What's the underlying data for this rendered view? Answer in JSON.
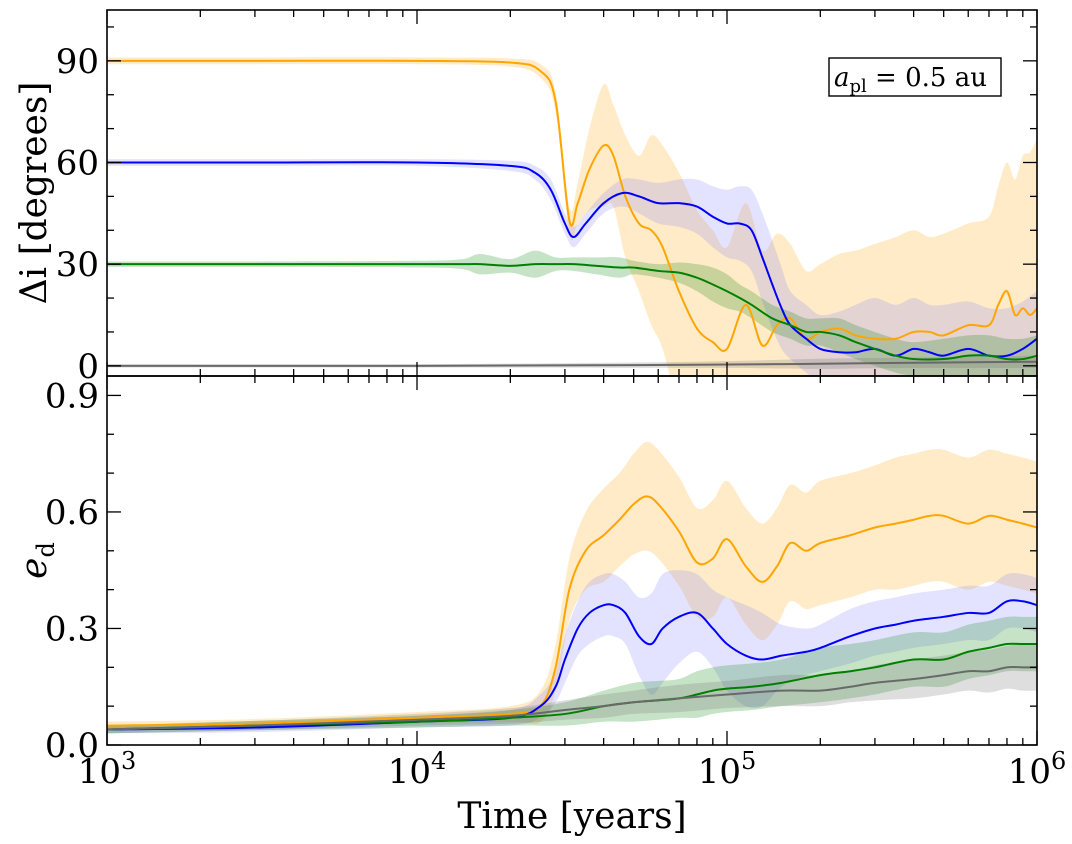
{
  "chart_data": [
    {
      "type": "line",
      "panel": "top",
      "ylabel": "Δi [degrees]",
      "xlabel": "",
      "x_scale": "log",
      "xlim": [
        1000,
        1000000
      ],
      "ylim": [
        -3,
        105
      ],
      "yticks": [
        0,
        30,
        60,
        90
      ],
      "ytick_labels": [
        "0",
        "30",
        "60",
        "90"
      ],
      "annotation": {
        "text": "a_pl = 0.5 au",
        "text_pl": "pl",
        "text_value": " = 0.5 au",
        "text_a": "a",
        "placement": "top-right"
      },
      "series": [
        {
          "color": "#ffa500",
          "x": [
            1000,
            3000,
            10000,
            20000,
            25000,
            28000,
            31000,
            33000,
            36000,
            40000,
            43000,
            47000,
            52000,
            57000,
            62000,
            70000,
            80000,
            90000,
            100000,
            115000,
            130000,
            145000,
            160000,
            180000,
            200000,
            230000,
            260000,
            300000,
            350000,
            400000,
            450000,
            500000,
            600000,
            700000,
            750000,
            800000,
            850000,
            900000,
            950000,
            1000000
          ],
          "y": [
            90,
            90,
            90,
            89.5,
            87,
            78,
            43,
            48,
            58,
            65,
            62,
            50,
            42,
            40,
            35,
            22,
            11,
            7,
            5,
            18,
            6,
            12,
            14,
            8,
            10,
            11,
            9,
            8,
            8,
            10,
            10,
            9,
            12,
            12,
            18,
            22,
            15,
            17,
            15,
            17
          ],
          "band": [
            1,
            1,
            1,
            1.2,
            2,
            3,
            4,
            6,
            12,
            18,
            15,
            18,
            20,
            28,
            30,
            35,
            35,
            33,
            30,
            30,
            28,
            27,
            22,
            20,
            20,
            22,
            25,
            28,
            30,
            30,
            28,
            30,
            30,
            32,
            35,
            38,
            40,
            45,
            48,
            50
          ]
        },
        {
          "color": "#0000ff",
          "x": [
            1000,
            3000,
            10000,
            20000,
            24000,
            27000,
            30000,
            32000,
            35000,
            40000,
            46000,
            52000,
            60000,
            70000,
            80000,
            90000,
            100000,
            110000,
            120000,
            130000,
            140000,
            150000,
            160000,
            180000,
            200000,
            230000,
            260000,
            300000,
            350000,
            400000,
            450000,
            500000,
            600000,
            700000,
            800000,
            900000,
            1000000
          ],
          "y": [
            60,
            60,
            60,
            59,
            57,
            52,
            42,
            38,
            42,
            48,
            51,
            50,
            48,
            48,
            47,
            44,
            42,
            42,
            40,
            32,
            24,
            17,
            12,
            8,
            5,
            4,
            4,
            5,
            3,
            5,
            4,
            3,
            5,
            3,
            3,
            5,
            8
          ],
          "band": [
            1,
            1,
            1,
            1.5,
            2,
            3,
            3,
            3,
            3,
            3,
            4,
            5,
            6,
            7,
            8,
            9,
            10,
            11,
            12,
            13,
            13,
            12,
            10,
            10,
            10,
            12,
            14,
            15,
            15,
            15,
            14,
            15,
            14,
            14,
            14,
            14,
            14
          ],
          "band_color": "#8080ff"
        },
        {
          "color": "#008000",
          "x": [
            1000,
            3000,
            10000,
            14000,
            16000,
            20000,
            24000,
            28000,
            32000,
            38000,
            45000,
            50000,
            60000,
            70000,
            80000,
            90000,
            100000,
            110000,
            120000,
            140000,
            160000,
            180000,
            200000,
            230000,
            260000,
            300000,
            350000,
            400000,
            500000,
            600000,
            700000,
            800000,
            900000,
            1000000
          ],
          "y": [
            30,
            30,
            30,
            30,
            30,
            29.5,
            30,
            30,
            30,
            29.5,
            29,
            29,
            28,
            27.5,
            26,
            24,
            22,
            20,
            18,
            14,
            12,
            10,
            10,
            9,
            7,
            5,
            3,
            2,
            2,
            3,
            3,
            2,
            2,
            3
          ],
          "band": [
            0.8,
            0.8,
            1,
            1.5,
            3,
            2,
            4,
            2,
            2,
            2.5,
            3,
            2,
            2,
            3,
            4,
            5,
            5,
            4,
            4,
            4,
            4,
            4,
            4,
            5,
            5,
            5,
            5,
            5,
            6,
            6,
            6,
            6,
            6,
            6
          ]
        },
        {
          "color": "#696969",
          "x": [
            1000,
            10000,
            50000,
            100000,
            150000,
            200000,
            300000,
            500000,
            1000000
          ],
          "y": [
            0,
            0,
            0.2,
            0.4,
            0.5,
            0.6,
            0.8,
            1,
            1.2
          ],
          "band": [
            0.5,
            0.5,
            0.8,
            1,
            1.3,
            1.5,
            1.5,
            1.6,
            1.8
          ]
        }
      ]
    },
    {
      "type": "line",
      "panel": "bottom",
      "xlabel": "Time [years]",
      "ylabel": "e_d",
      "ylabel_main": "e",
      "ylabel_sub": "d",
      "x_scale": "log",
      "xlim": [
        1000,
        1000000
      ],
      "xticks": [
        1000,
        10000,
        100000,
        1000000
      ],
      "xtick_labels": [
        {
          "base": "10",
          "exp": "3"
        },
        {
          "base": "10",
          "exp": "4"
        },
        {
          "base": "10",
          "exp": "5"
        },
        {
          "base": "10",
          "exp": "6"
        }
      ],
      "ylim": [
        0,
        0.95
      ],
      "yticks": [
        0,
        0.3,
        0.6,
        0.9
      ],
      "ytick_labels": [
        "0.0",
        "0.3",
        "0.6",
        "0.9"
      ],
      "series": [
        {
          "color": "#ffa500",
          "x": [
            1000,
            3000,
            10000,
            20000,
            25000,
            28000,
            31000,
            35000,
            40000,
            45000,
            50000,
            55000,
            60000,
            70000,
            80000,
            90000,
            100000,
            115000,
            130000,
            145000,
            160000,
            180000,
            200000,
            250000,
            300000,
            350000,
            400000,
            450000,
            500000,
            600000,
            700000,
            800000,
            900000,
            1000000
          ],
          "y": [
            0.05,
            0.055,
            0.07,
            0.08,
            0.1,
            0.2,
            0.4,
            0.5,
            0.54,
            0.58,
            0.62,
            0.64,
            0.62,
            0.55,
            0.47,
            0.48,
            0.53,
            0.46,
            0.42,
            0.46,
            0.52,
            0.5,
            0.52,
            0.54,
            0.56,
            0.57,
            0.58,
            0.59,
            0.59,
            0.57,
            0.59,
            0.58,
            0.57,
            0.56
          ],
          "band": [
            0.01,
            0.012,
            0.015,
            0.02,
            0.04,
            0.06,
            0.08,
            0.1,
            0.12,
            0.12,
            0.13,
            0.14,
            0.14,
            0.14,
            0.14,
            0.15,
            0.15,
            0.15,
            0.15,
            0.15,
            0.15,
            0.15,
            0.16,
            0.16,
            0.16,
            0.17,
            0.17,
            0.17,
            0.17,
            0.17,
            0.17,
            0.17,
            0.17,
            0.17
          ]
        },
        {
          "color": "#0000ff",
          "x": [
            1000,
            3000,
            10000,
            20000,
            25000,
            28000,
            30000,
            33000,
            36000,
            40000,
            43000,
            47000,
            52000,
            57000,
            62000,
            70000,
            80000,
            90000,
            100000,
            115000,
            130000,
            150000,
            180000,
            200000,
            250000,
            300000,
            350000,
            400000,
            500000,
            600000,
            700000,
            800000,
            900000,
            1000000
          ],
          "y": [
            0.04,
            0.045,
            0.06,
            0.07,
            0.1,
            0.15,
            0.22,
            0.3,
            0.34,
            0.36,
            0.36,
            0.34,
            0.28,
            0.26,
            0.3,
            0.33,
            0.34,
            0.3,
            0.26,
            0.23,
            0.22,
            0.23,
            0.24,
            0.25,
            0.28,
            0.3,
            0.31,
            0.32,
            0.33,
            0.34,
            0.34,
            0.37,
            0.37,
            0.36
          ],
          "band": [
            0.01,
            0.012,
            0.015,
            0.02,
            0.03,
            0.04,
            0.06,
            0.07,
            0.08,
            0.08,
            0.08,
            0.08,
            0.1,
            0.13,
            0.14,
            0.12,
            0.1,
            0.1,
            0.12,
            0.13,
            0.12,
            0.08,
            0.06,
            0.06,
            0.07,
            0.07,
            0.07,
            0.07,
            0.07,
            0.07,
            0.07,
            0.07,
            0.07,
            0.07
          ],
          "band_color": "#8080ff"
        },
        {
          "color": "#008000",
          "x": [
            1000,
            3000,
            10000,
            20000,
            30000,
            40000,
            50000,
            60000,
            70000,
            80000,
            90000,
            100000,
            120000,
            150000,
            200000,
            250000,
            300000,
            400000,
            500000,
            600000,
            700000,
            800000,
            900000,
            1000000
          ],
          "y": [
            0.04,
            0.05,
            0.06,
            0.07,
            0.08,
            0.1,
            0.11,
            0.115,
            0.12,
            0.13,
            0.14,
            0.145,
            0.15,
            0.16,
            0.18,
            0.19,
            0.2,
            0.22,
            0.22,
            0.24,
            0.25,
            0.26,
            0.26,
            0.26
          ],
          "band": [
            0.01,
            0.012,
            0.015,
            0.02,
            0.03,
            0.04,
            0.05,
            0.05,
            0.05,
            0.06,
            0.06,
            0.06,
            0.06,
            0.06,
            0.07,
            0.07,
            0.07,
            0.07,
            0.07,
            0.07,
            0.07,
            0.07,
            0.07,
            0.07
          ]
        },
        {
          "color": "#696969",
          "x": [
            1000,
            3000,
            10000,
            20000,
            30000,
            40000,
            50000,
            70000,
            100000,
            150000,
            200000,
            250000,
            300000,
            400000,
            500000,
            600000,
            700000,
            800000,
            900000,
            1000000
          ],
          "y": [
            0.04,
            0.05,
            0.065,
            0.075,
            0.09,
            0.1,
            0.11,
            0.12,
            0.13,
            0.14,
            0.14,
            0.15,
            0.16,
            0.17,
            0.18,
            0.19,
            0.19,
            0.2,
            0.2,
            0.2
          ],
          "band": [
            0.01,
            0.012,
            0.015,
            0.02,
            0.025,
            0.03,
            0.03,
            0.035,
            0.035,
            0.04,
            0.04,
            0.04,
            0.045,
            0.05,
            0.05,
            0.05,
            0.055,
            0.055,
            0.06,
            0.06
          ]
        }
      ]
    }
  ]
}
